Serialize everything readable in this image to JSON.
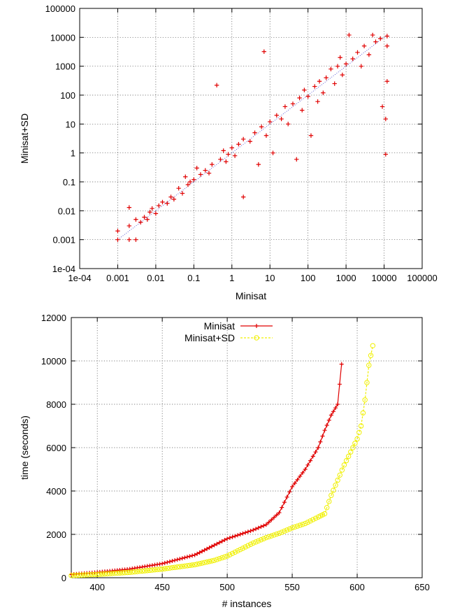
{
  "chart_data": [
    {
      "type": "scatter",
      "title": "",
      "xlabel": "Minisat",
      "ylabel": "Minisat+SD",
      "xscale": "log",
      "yscale": "log",
      "xlim": [
        0.0001,
        100000
      ],
      "ylim": [
        0.0001,
        100000
      ],
      "grid": true,
      "x_ticks": [
        "1e-04",
        "0.001",
        "0.01",
        "0.1",
        "1",
        "10",
        "100",
        "1000",
        "10000",
        "100000"
      ],
      "y_ticks": [
        "1e-04",
        "0.001",
        "0.01",
        "0.1",
        "1",
        "10",
        "100",
        "1000",
        "10000",
        "100000"
      ],
      "diagonal_reference": true,
      "marker": "+",
      "color": "#e00000",
      "points": [
        [
          0.001,
          0.002
        ],
        [
          0.001,
          0.001
        ],
        [
          0.002,
          0.001
        ],
        [
          0.002,
          0.003
        ],
        [
          0.003,
          0.001
        ],
        [
          0.003,
          0.005
        ],
        [
          0.002,
          0.013
        ],
        [
          0.004,
          0.004
        ],
        [
          0.005,
          0.006
        ],
        [
          0.006,
          0.005
        ],
        [
          0.007,
          0.009
        ],
        [
          0.008,
          0.012
        ],
        [
          0.01,
          0.008
        ],
        [
          0.012,
          0.015
        ],
        [
          0.015,
          0.02
        ],
        [
          0.02,
          0.018
        ],
        [
          0.025,
          0.03
        ],
        [
          0.03,
          0.025
        ],
        [
          0.04,
          0.06
        ],
        [
          0.05,
          0.04
        ],
        [
          0.06,
          0.15
        ],
        [
          0.07,
          0.08
        ],
        [
          0.08,
          0.1
        ],
        [
          0.1,
          0.12
        ],
        [
          0.12,
          0.3
        ],
        [
          0.15,
          0.18
        ],
        [
          0.2,
          0.25
        ],
        [
          0.25,
          0.2
        ],
        [
          0.3,
          0.4
        ],
        [
          0.4,
          220
        ],
        [
          0.5,
          0.6
        ],
        [
          0.6,
          1.2
        ],
        [
          0.7,
          0.5
        ],
        [
          0.8,
          0.9
        ],
        [
          1,
          1.5
        ],
        [
          1.2,
          0.8
        ],
        [
          1.5,
          2
        ],
        [
          2,
          0.03
        ],
        [
          2,
          3
        ],
        [
          3,
          2.5
        ],
        [
          4,
          5
        ],
        [
          5,
          0.4
        ],
        [
          6,
          8
        ],
        [
          7,
          3200
        ],
        [
          8,
          4
        ],
        [
          10,
          12
        ],
        [
          12,
          1
        ],
        [
          15,
          20
        ],
        [
          20,
          15
        ],
        [
          25,
          40
        ],
        [
          30,
          10
        ],
        [
          40,
          50
        ],
        [
          50,
          0.6
        ],
        [
          60,
          80
        ],
        [
          70,
          30
        ],
        [
          80,
          150
        ],
        [
          100,
          90
        ],
        [
          120,
          4
        ],
        [
          150,
          200
        ],
        [
          180,
          60
        ],
        [
          200,
          300
        ],
        [
          250,
          120
        ],
        [
          300,
          400
        ],
        [
          400,
          800
        ],
        [
          500,
          250
        ],
        [
          600,
          1000
        ],
        [
          700,
          2000
        ],
        [
          800,
          500
        ],
        [
          1000,
          1200
        ],
        [
          1200,
          12000
        ],
        [
          1500,
          1800
        ],
        [
          2000,
          3000
        ],
        [
          2500,
          1000
        ],
        [
          3000,
          5000
        ],
        [
          4000,
          2500
        ],
        [
          5000,
          12000
        ],
        [
          6000,
          7000
        ],
        [
          8000,
          9000
        ],
        [
          9000,
          40
        ],
        [
          11000,
          0.9
        ],
        [
          11000,
          15
        ],
        [
          12000,
          11000
        ],
        [
          12000,
          5000
        ],
        [
          12000,
          300
        ]
      ]
    },
    {
      "type": "line",
      "title": "",
      "xlabel": "# instances",
      "ylabel": "time (seconds)",
      "xlim": [
        380,
        650
      ],
      "ylim": [
        0,
        12000
      ],
      "grid": true,
      "legend": "top-left",
      "x_ticks": [
        400,
        450,
        500,
        550,
        600,
        650
      ],
      "y_ticks": [
        0,
        2000,
        4000,
        6000,
        8000,
        10000,
        12000
      ],
      "series": [
        {
          "name": "Minisat",
          "color": "#e00000",
          "marker": "+",
          "points": [
            [
              380,
              150
            ],
            [
              400,
              250
            ],
            [
              425,
              400
            ],
            [
              450,
              650
            ],
            [
              475,
              1050
            ],
            [
              490,
              1500
            ],
            [
              500,
              1800
            ],
            [
              510,
              2000
            ],
            [
              520,
              2200
            ],
            [
              530,
              2450
            ],
            [
              540,
              3000
            ],
            [
              550,
              4200
            ],
            [
              560,
              5000
            ],
            [
              570,
              6000
            ],
            [
              575,
              6800
            ],
            [
              580,
              7500
            ],
            [
              585,
              8000
            ],
            [
              588,
              9850
            ]
          ]
        },
        {
          "name": "Minisat+SD",
          "color": "#f0f000",
          "marker": "circle",
          "points": [
            [
              380,
              100
            ],
            [
              400,
              150
            ],
            [
              425,
              250
            ],
            [
              450,
              400
            ],
            [
              475,
              600
            ],
            [
              490,
              800
            ],
            [
              500,
              1000
            ],
            [
              510,
              1300
            ],
            [
              520,
              1600
            ],
            [
              530,
              1850
            ],
            [
              540,
              2050
            ],
            [
              550,
              2300
            ],
            [
              560,
              2500
            ],
            [
              570,
              2800
            ],
            [
              575,
              2950
            ],
            [
              580,
              3800
            ],
            [
              585,
              4500
            ],
            [
              590,
              5200
            ],
            [
              595,
              5800
            ],
            [
              600,
              6400
            ],
            [
              603,
              7000
            ],
            [
              606,
              8200
            ],
            [
              609,
              9800
            ],
            [
              612,
              10700
            ]
          ]
        }
      ]
    }
  ]
}
